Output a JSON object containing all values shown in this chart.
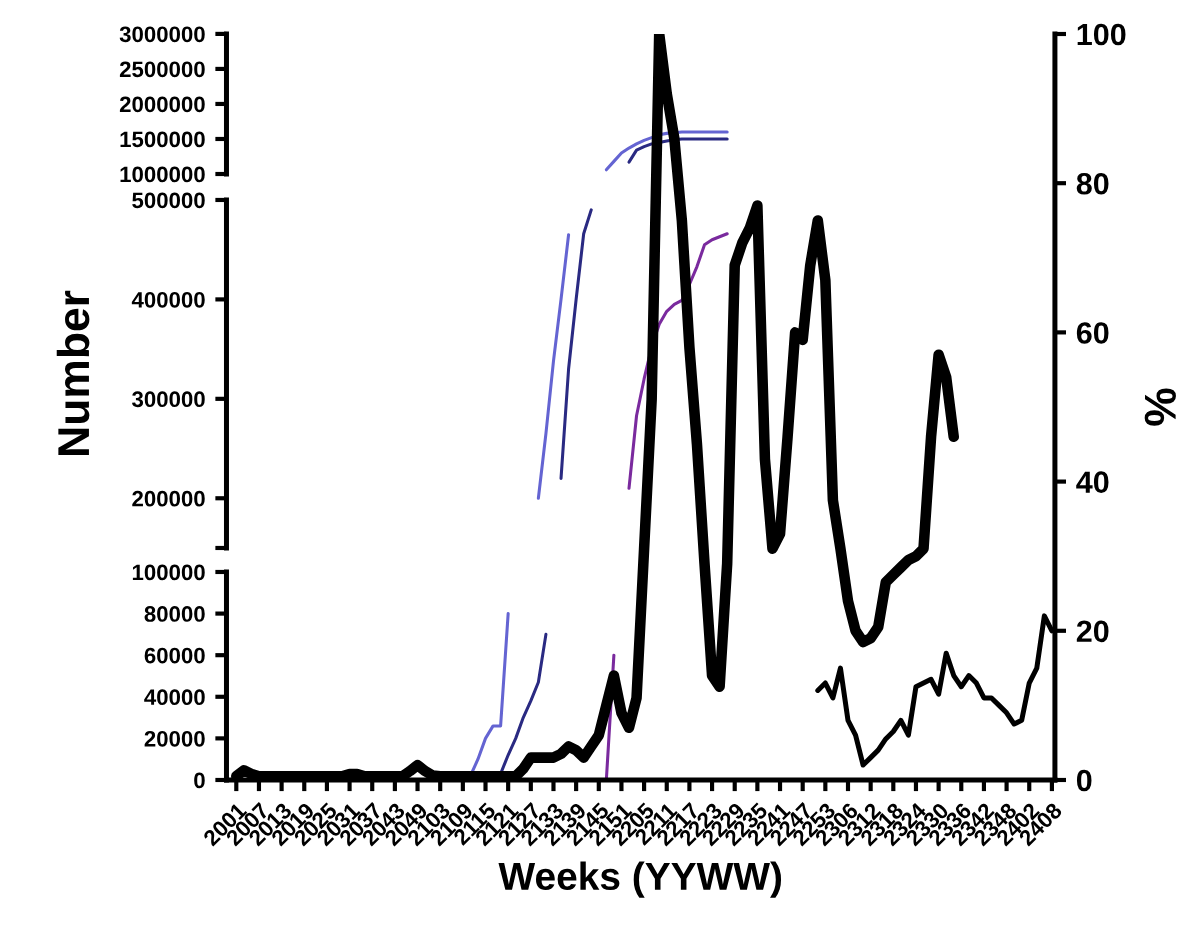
{
  "chart_data": [
    {
      "type": "line",
      "categories": [
        "2001",
        null,
        null,
        "2007",
        null,
        null,
        "2013",
        null,
        null,
        "2019",
        null,
        null,
        "2025",
        null,
        null,
        "2031",
        null,
        null,
        "2037",
        null,
        null,
        "2043",
        null,
        null,
        "2049",
        null,
        null,
        "2103",
        null,
        null,
        "2109",
        null,
        null,
        "2115",
        null,
        null,
        "2121",
        null,
        null,
        "2127",
        null,
        null,
        "2133",
        null,
        null,
        "2139",
        null,
        null,
        "2145",
        null,
        null,
        "2151",
        null,
        null,
        "2205",
        null,
        null,
        "2211",
        null,
        null,
        "2217",
        null,
        null,
        "2223",
        null,
        null,
        "2229",
        null,
        null,
        "2235",
        null,
        null,
        "2241",
        null,
        null,
        "2247",
        null,
        null,
        "2253",
        null,
        null,
        "2306",
        null,
        null,
        "2312",
        null,
        null,
        "2318",
        null,
        null,
        "2324",
        null,
        null,
        "2330",
        null,
        null,
        "2336",
        null,
        null,
        "2342",
        null,
        null,
        "2348",
        null,
        null,
        "2402",
        null,
        null,
        "2408"
      ],
      "ylim": [
        1000000,
        3000000
      ],
      "yticks": [
        1000000,
        1500000,
        2000000,
        2500000,
        3000000
      ],
      "tick_labels": "y",
      "grid": false,
      "marker": "none",
      "line_style": "solid",
      "series": [
        {
          "color": "#6464d2",
          "values": [
            null,
            null,
            null,
            null,
            null,
            null,
            null,
            null,
            null,
            null,
            null,
            null,
            null,
            null,
            null,
            null,
            null,
            null,
            null,
            null,
            null,
            null,
            null,
            null,
            null,
            null,
            null,
            null,
            null,
            null,
            null,
            null,
            null,
            null,
            null,
            null,
            null,
            null,
            null,
            null,
            null,
            null,
            null,
            null,
            null,
            null,
            null,
            null,
            null,
            1060000,
            1180000,
            1300000,
            1370000,
            1430000,
            1480000,
            1520000,
            1560000,
            1580000,
            1590000,
            1600000,
            1600000,
            1600000,
            1600000,
            1600000,
            1600000,
            1600000,
            null,
            null,
            null,
            null,
            null,
            null,
            null,
            null,
            null,
            null,
            null,
            null,
            null,
            null,
            null,
            null,
            null,
            null,
            null,
            null,
            null,
            null,
            null,
            null,
            null,
            null,
            null,
            null,
            null,
            null,
            null,
            null,
            null,
            null,
            null,
            null,
            null,
            null,
            null,
            null,
            null,
            null,
            null
          ]
        },
        {
          "color": "#2a2a82",
          "values": [
            null,
            null,
            null,
            null,
            null,
            null,
            null,
            null,
            null,
            null,
            null,
            null,
            null,
            null,
            null,
            null,
            null,
            null,
            null,
            null,
            null,
            null,
            null,
            null,
            null,
            null,
            null,
            null,
            null,
            null,
            null,
            null,
            null,
            null,
            null,
            null,
            null,
            null,
            null,
            null,
            null,
            null,
            null,
            null,
            null,
            null,
            null,
            null,
            null,
            null,
            null,
            null,
            1170000,
            1340000,
            1390000,
            1430000,
            1450000,
            1470000,
            1490000,
            1500000,
            1500000,
            1500000,
            1500000,
            1500000,
            1500000,
            1500000,
            null,
            null,
            null,
            null,
            null,
            null,
            null,
            null,
            null,
            null,
            null,
            null,
            null,
            null,
            null,
            null,
            null,
            null,
            null,
            null,
            null,
            null,
            null,
            null,
            null,
            null,
            null,
            null,
            null,
            null,
            null,
            null,
            null,
            null,
            null,
            null,
            null,
            null,
            null,
            null,
            null,
            null,
            null
          ]
        }
      ]
    },
    {
      "type": "line",
      "categories": [
        "2001",
        null,
        null,
        "2007",
        null,
        null,
        "2013",
        null,
        null,
        "2019",
        null,
        null,
        "2025",
        null,
        null,
        "2031",
        null,
        null,
        "2037",
        null,
        null,
        "2043",
        null,
        null,
        "2049",
        null,
        null,
        "2103",
        null,
        null,
        "2109",
        null,
        null,
        "2115",
        null,
        null,
        "2121",
        null,
        null,
        "2127",
        null,
        null,
        "2133",
        null,
        null,
        "2139",
        null,
        null,
        "2145",
        null,
        null,
        "2151",
        null,
        null,
        "2205",
        null,
        null,
        "2211",
        null,
        null,
        "2217",
        null,
        null,
        "2223",
        null,
        null,
        "2229",
        null,
        null,
        "2235",
        null,
        null,
        "2241",
        null,
        null,
        "2247",
        null,
        null,
        "2253",
        null,
        null,
        "2306",
        null,
        null,
        "2312",
        null,
        null,
        "2318",
        null,
        null,
        "2324",
        null,
        null,
        "2330",
        null,
        null,
        "2336",
        null,
        null,
        "2342",
        null,
        null,
        "2348",
        null,
        null,
        "2402",
        null,
        null,
        "2408"
      ],
      "ylabel": "Number",
      "ylim": [
        150000,
        500000
      ],
      "yticks": [
        {
          "value": 150000,
          "label": null
        },
        200000,
        300000,
        400000,
        500000
      ],
      "tick_labels": "y",
      "grid": false,
      "marker": "none",
      "line_style": "solid",
      "series": [
        {
          "color": "#6464d2",
          "values": [
            null,
            null,
            null,
            null,
            null,
            null,
            null,
            null,
            null,
            null,
            null,
            null,
            null,
            null,
            null,
            null,
            null,
            null,
            null,
            null,
            null,
            null,
            null,
            null,
            null,
            null,
            null,
            null,
            null,
            null,
            null,
            null,
            null,
            null,
            null,
            null,
            null,
            null,
            null,
            null,
            200000,
            265000,
            338000,
            400000,
            465000,
            null,
            null,
            null,
            null,
            null,
            null,
            null,
            null,
            null,
            null,
            null,
            null,
            null,
            null,
            null,
            null,
            null,
            null,
            null,
            null,
            null,
            null,
            null,
            null,
            null,
            null,
            null,
            null,
            null,
            null,
            null,
            null,
            null,
            null,
            null,
            null,
            null,
            null,
            null,
            null,
            null,
            null,
            null,
            null,
            null,
            null,
            null,
            null,
            null,
            null,
            null,
            null,
            null,
            null,
            null,
            null,
            null,
            null,
            null,
            null,
            null,
            null,
            null,
            null
          ]
        },
        {
          "color": "#2a2a82",
          "values": [
            null,
            null,
            null,
            null,
            null,
            null,
            null,
            null,
            null,
            null,
            null,
            null,
            null,
            null,
            null,
            null,
            null,
            null,
            null,
            null,
            null,
            null,
            null,
            null,
            null,
            null,
            null,
            null,
            null,
            null,
            null,
            null,
            null,
            null,
            null,
            null,
            null,
            null,
            null,
            null,
            null,
            null,
            null,
            220000,
            330000,
            400000,
            466000,
            490000,
            null,
            null,
            null,
            null,
            null,
            null,
            null,
            null,
            null,
            null,
            null,
            null,
            null,
            null,
            null,
            null,
            null,
            null,
            null,
            null,
            null,
            null,
            null,
            null,
            null,
            null,
            null,
            null,
            null,
            null,
            null,
            null,
            null,
            null,
            null,
            null,
            null,
            null,
            null,
            null,
            null,
            null,
            null,
            null,
            null,
            null,
            null,
            null,
            null,
            null,
            null,
            null,
            null,
            null,
            null,
            null,
            null,
            null,
            null,
            null,
            null
          ]
        },
        {
          "color": "#7a2a9e",
          "values": [
            null,
            null,
            null,
            null,
            null,
            null,
            null,
            null,
            null,
            null,
            null,
            null,
            null,
            null,
            null,
            null,
            null,
            null,
            null,
            null,
            null,
            null,
            null,
            null,
            null,
            null,
            null,
            null,
            null,
            null,
            null,
            null,
            null,
            null,
            null,
            null,
            null,
            null,
            null,
            null,
            null,
            null,
            null,
            null,
            null,
            null,
            null,
            null,
            null,
            null,
            null,
            null,
            210000,
            283000,
            320000,
            352000,
            375000,
            388000,
            395000,
            399000,
            415000,
            433000,
            455000,
            460000,
            463000,
            466000,
            null,
            null,
            null,
            null,
            null,
            null,
            null,
            null,
            null,
            null,
            null,
            null,
            null,
            null,
            null,
            null,
            null,
            null,
            null,
            null,
            null,
            null,
            null,
            null,
            null,
            null,
            null,
            null,
            null,
            null,
            null,
            null,
            null,
            null,
            null,
            null,
            null,
            null,
            null,
            null,
            null,
            null,
            null
          ]
        }
      ]
    },
    {
      "type": "line",
      "categories": [
        "2001",
        null,
        null,
        "2007",
        null,
        null,
        "2013",
        null,
        null,
        "2019",
        null,
        null,
        "2025",
        null,
        null,
        "2031",
        null,
        null,
        "2037",
        null,
        null,
        "2043",
        null,
        null,
        "2049",
        null,
        null,
        "2103",
        null,
        null,
        "2109",
        null,
        null,
        "2115",
        null,
        null,
        "2121",
        null,
        null,
        "2127",
        null,
        null,
        "2133",
        null,
        null,
        "2139",
        null,
        null,
        "2145",
        null,
        null,
        "2151",
        null,
        null,
        "2205",
        null,
        null,
        "2211",
        null,
        null,
        "2217",
        null,
        null,
        "2223",
        null,
        null,
        "2229",
        null,
        null,
        "2235",
        null,
        null,
        "2241",
        null,
        null,
        "2247",
        null,
        null,
        "2253",
        null,
        null,
        "2306",
        null,
        null,
        "2312",
        null,
        null,
        "2318",
        null,
        null,
        "2324",
        null,
        null,
        "2330",
        null,
        null,
        "2336",
        null,
        null,
        "2342",
        null,
        null,
        "2348",
        null,
        null,
        "2402",
        null,
        null,
        "2408"
      ],
      "xlabel": "Weeks (YYWW)",
      "ylim": [
        0,
        100000
      ],
      "yticks": [
        0,
        20000,
        40000,
        60000,
        80000,
        100000
      ],
      "grid": false,
      "marker": "none",
      "line_style": "solid",
      "series": [
        {
          "color": "#6464d2",
          "values": [
            null,
            null,
            null,
            null,
            null,
            null,
            null,
            null,
            null,
            null,
            null,
            null,
            null,
            null,
            null,
            null,
            null,
            null,
            null,
            null,
            null,
            null,
            null,
            null,
            null,
            null,
            null,
            null,
            null,
            null,
            null,
            2000,
            10000,
            20000,
            26000,
            26000,
            80000,
            null,
            null,
            null,
            null,
            null,
            null,
            null,
            null,
            null,
            null,
            null,
            null,
            null,
            null,
            null,
            null,
            null,
            null,
            null,
            null,
            null,
            null,
            null,
            null,
            null,
            null,
            null,
            null,
            null,
            null,
            null,
            null,
            null,
            null,
            null,
            null,
            null,
            null,
            null,
            null,
            null,
            null,
            null,
            null,
            null,
            null,
            null,
            null,
            null,
            null,
            null,
            null,
            null,
            null,
            null,
            null,
            null,
            null,
            null,
            null,
            null,
            null,
            null,
            null,
            null,
            null,
            null,
            null,
            null,
            null,
            null,
            null
          ]
        },
        {
          "color": "#2a2a82",
          "values": [
            null,
            null,
            null,
            null,
            null,
            null,
            null,
            null,
            null,
            null,
            null,
            null,
            null,
            null,
            null,
            null,
            null,
            null,
            null,
            null,
            null,
            null,
            null,
            null,
            null,
            null,
            null,
            null,
            null,
            null,
            null,
            null,
            null,
            null,
            null,
            3000,
            12000,
            20000,
            30000,
            38000,
            47000,
            70000,
            null,
            null,
            null,
            null,
            null,
            null,
            null,
            null,
            null,
            null,
            null,
            null,
            null,
            null,
            null,
            null,
            null,
            null,
            null,
            null,
            null,
            null,
            null,
            null,
            null,
            null,
            null,
            null,
            null,
            null,
            null,
            null,
            null,
            null,
            null,
            null,
            null,
            null,
            null,
            null,
            null,
            null,
            null,
            null,
            null,
            null,
            null,
            null,
            null,
            null,
            null,
            null,
            null,
            null,
            null,
            null,
            null,
            null,
            null,
            null,
            null,
            null,
            null,
            null,
            null,
            null,
            null
          ]
        },
        {
          "color": "#7a2a9e",
          "values": [
            null,
            null,
            null,
            null,
            null,
            null,
            null,
            null,
            null,
            null,
            null,
            null,
            null,
            null,
            null,
            null,
            null,
            null,
            null,
            null,
            null,
            null,
            null,
            null,
            null,
            null,
            null,
            null,
            null,
            null,
            null,
            null,
            null,
            null,
            null,
            null,
            null,
            null,
            null,
            null,
            null,
            null,
            null,
            null,
            null,
            null,
            null,
            0,
            0,
            0,
            60000,
            null,
            null,
            null,
            null,
            null,
            null,
            null,
            null,
            null,
            null,
            null,
            null,
            null,
            null,
            null,
            null,
            null,
            null,
            null,
            null,
            null,
            null,
            null,
            null,
            null,
            null,
            null,
            null,
            null,
            null,
            null,
            null,
            null,
            null,
            null,
            null,
            null,
            null,
            null,
            null,
            null,
            null,
            null,
            null,
            null,
            null,
            null,
            null,
            null,
            null,
            null,
            null,
            null,
            null,
            null,
            null,
            null,
            null
          ]
        }
      ]
    },
    {
      "type": "line",
      "categories": [
        "2001",
        null,
        null,
        "2007",
        null,
        null,
        "2013",
        null,
        null,
        "2019",
        null,
        null,
        "2025",
        null,
        null,
        "2031",
        null,
        null,
        "2037",
        null,
        null,
        "2043",
        null,
        null,
        "2049",
        null,
        null,
        "2103",
        null,
        null,
        "2109",
        null,
        null,
        "2115",
        null,
        null,
        "2121",
        null,
        null,
        "2127",
        null,
        null,
        "2133",
        null,
        null,
        "2139",
        null,
        null,
        "2145",
        null,
        null,
        "2151",
        null,
        null,
        "2205",
        null,
        null,
        "2211",
        null,
        null,
        "2217",
        null,
        null,
        "2223",
        null,
        null,
        "2229",
        null,
        null,
        "2235",
        null,
        null,
        "2241",
        null,
        null,
        "2247",
        null,
        null,
        "2253",
        null,
        null,
        "2306",
        null,
        null,
        "2312",
        null,
        null,
        "2318",
        null,
        null,
        "2324",
        null,
        null,
        "2330",
        null,
        null,
        "2336",
        null,
        null,
        "2342",
        null,
        null,
        "2348",
        null,
        null,
        "2402",
        null,
        null,
        "2408"
      ],
      "y2label": "%",
      "y2lim": [
        0,
        100
      ],
      "y2ticks": [
        0,
        20,
        40,
        60,
        80,
        100
      ],
      "tick_labels": "y",
      "grid": false,
      "marker": "none",
      "line_style": "solid",
      "series": [
        {
          "color": "#000000",
          "axis": "y2",
          "values": [
            0.5,
            1.3,
            0.8,
            0.5,
            0.5,
            0.5,
            0.5,
            0.5,
            0.5,
            0.5,
            0.5,
            0.5,
            0.5,
            0.5,
            0.5,
            0.8,
            0.8,
            0.5,
            0.5,
            0.5,
            0.5,
            0.5,
            0.5,
            1.2,
            2,
            1.2,
            0.6,
            0.5,
            0.5,
            0.5,
            0.5,
            0.5,
            0.5,
            0.5,
            0.5,
            0.5,
            0.5,
            0.5,
            1.5,
            3,
            3,
            3,
            3,
            3.5,
            4.5,
            4,
            3,
            4.5,
            6,
            10,
            14,
            9,
            7,
            11,
            31,
            51,
            100,
            92,
            86,
            75,
            58,
            45,
            29,
            14,
            12.5,
            29,
            69,
            72,
            74,
            77,
            43,
            31,
            33,
            46,
            60,
            59,
            69,
            75,
            67,
            37.5,
            31,
            24,
            20,
            18.5,
            19,
            20.5,
            26.5,
            27.5,
            28.5,
            29.5,
            30,
            31,
            46,
            57,
            54,
            46,
            null,
            null,
            null,
            null,
            null,
            null,
            null,
            null,
            null,
            null,
            null,
            null,
            null
          ]
        },
        {
          "color": "#000000",
          "axis": "y2",
          "values": [
            null,
            null,
            null,
            null,
            null,
            null,
            null,
            null,
            null,
            null,
            null,
            null,
            null,
            null,
            null,
            null,
            null,
            null,
            null,
            null,
            null,
            null,
            null,
            null,
            null,
            null,
            null,
            null,
            null,
            null,
            null,
            null,
            null,
            null,
            null,
            null,
            null,
            null,
            null,
            null,
            null,
            null,
            null,
            null,
            null,
            null,
            null,
            null,
            null,
            null,
            null,
            null,
            null,
            null,
            null,
            null,
            null,
            null,
            null,
            null,
            null,
            null,
            null,
            null,
            null,
            null,
            null,
            null,
            null,
            null,
            null,
            null,
            null,
            null,
            null,
            null,
            null,
            12,
            13,
            11,
            15,
            8,
            6,
            2,
            3,
            4,
            5.5,
            6.5,
            8,
            6,
            12.5,
            13,
            13.5,
            11.5,
            17,
            14,
            12.5,
            14,
            13,
            11,
            11,
            10,
            9,
            7.5,
            8,
            13,
            15,
            22,
            20
          ]
        }
      ]
    }
  ]
}
